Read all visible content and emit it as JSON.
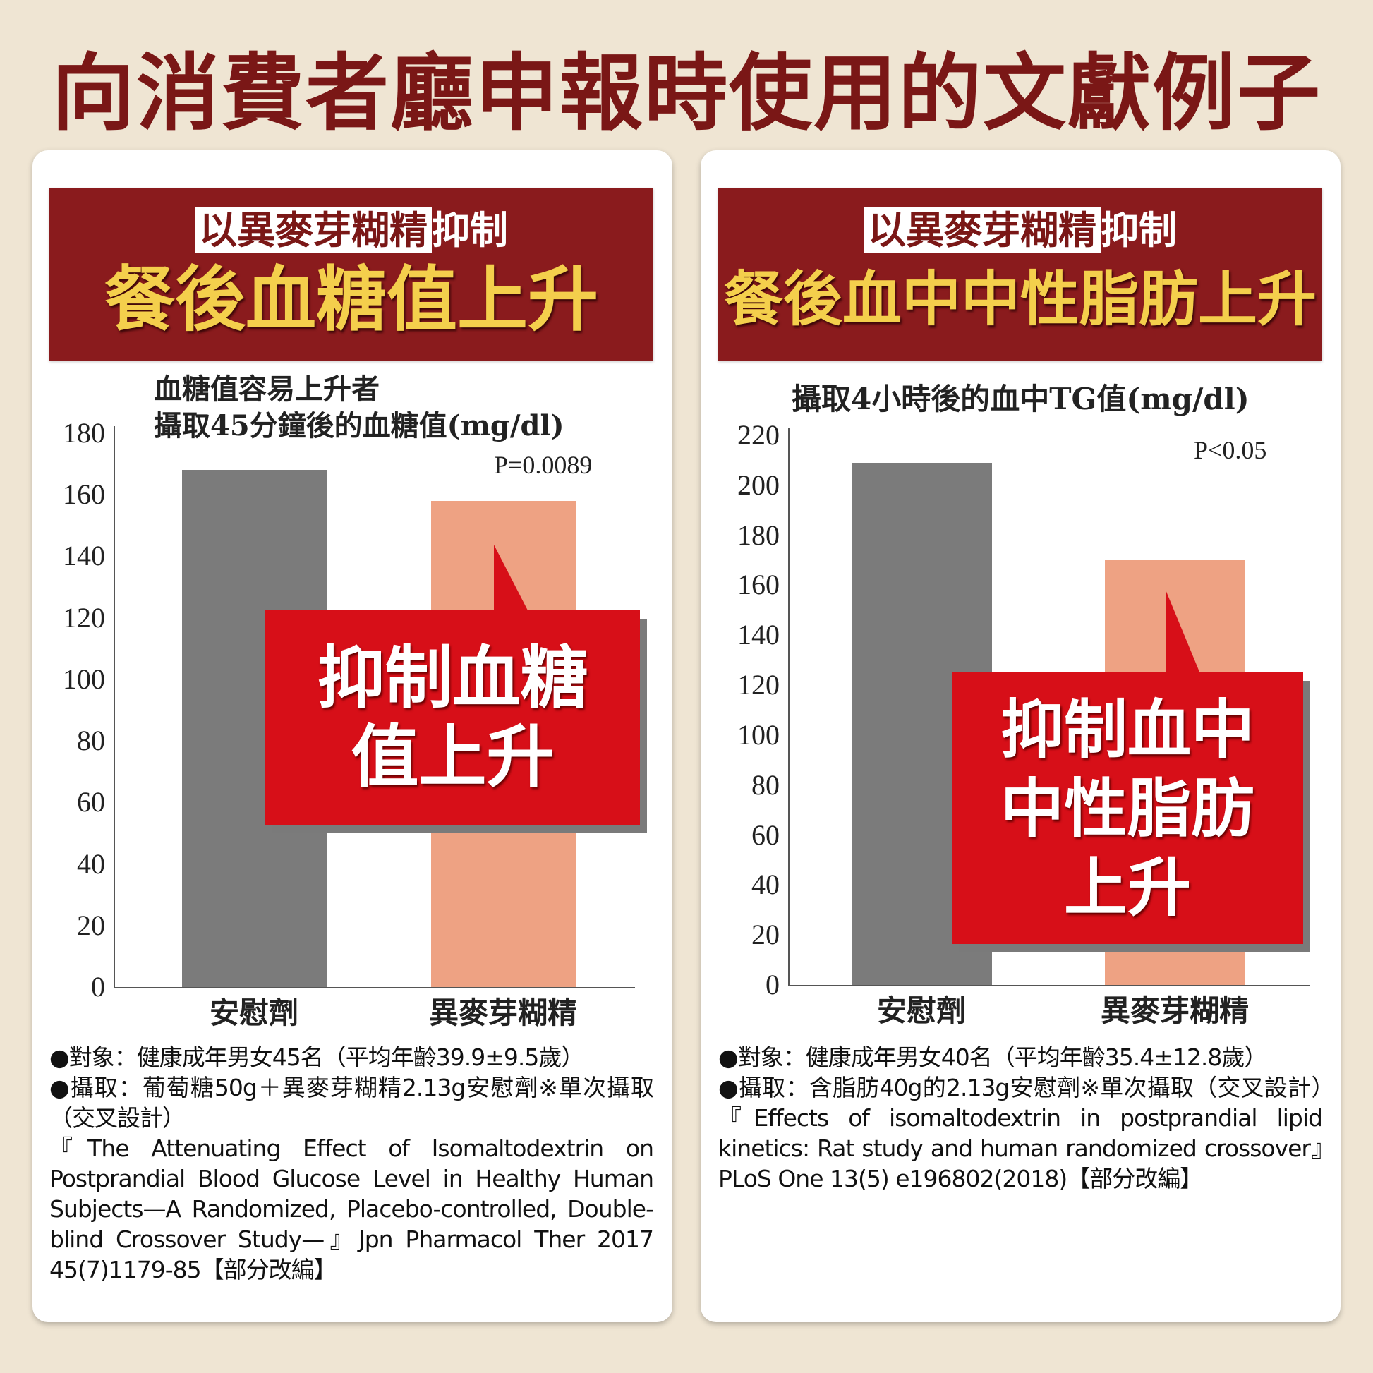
{
  "title": "向消費者廳申報時使用的文獻例子",
  "colors": {
    "placebo": "#7b7b7b",
    "isomaltodextrin": "#eea283",
    "header": "#8a1b1d",
    "callout": "#d70f18",
    "headline": "#f4cf4c"
  },
  "panels": [
    {
      "header_highlight": "以異麥芽糊精",
      "header_sub": "抑制",
      "header_main": "餐後血糖值上升",
      "chart_title_1": "血糖值容易上升者",
      "chart_title_2": "攝取45分鐘後的血糖值(mg/dl)",
      "p_value": "P=0.0089",
      "callout": "抑制血糖\n值上升",
      "notes": [
        "●對象：健康成年男女45名（平均年齡39.9±9.5歲）",
        "●攝取：葡萄糖50g＋異麥芽糊精2.13g安慰劑※單次攝取（交叉設計）",
        "『The Attenuating Effect of Isomaltodextrin on Postprandial Blood Glucose Level in Healthy Human Subjects—A Randomized, Placebo-controlled, Double-blind Crossover Study—』Jpn Pharmacol Ther 2017 45(7)1179-85【部分改編】"
      ]
    },
    {
      "header_highlight": "以異麥芽糊精",
      "header_sub": "抑制",
      "header_main": "餐後血中中性脂肪上升",
      "chart_title_1": "攝取4小時後的血中TG值(mg/dl)",
      "chart_title_2": "",
      "p_value": "P<0.05",
      "callout": "抑制血中\n中性脂肪\n上升",
      "notes": [
        "●對象：健康成年男女40名（平均年齡35.4±12.8歲）",
        "●攝取：含脂肪40g的2.13g安慰劑※單次攝取（交叉設計）　『Effects of isomaltodextrin in postprandial lipid kinetics: Rat study and human randomized crossover』PLoS One 13(5) e196802(2018)【部分改編】"
      ]
    }
  ],
  "chart_data": [
    {
      "type": "bar",
      "title": "血糖值容易上升者 攝取45分鐘後的血糖值(mg/dl)",
      "categories": [
        "安慰劑",
        "異麥芽糊精"
      ],
      "values": [
        168,
        158
      ],
      "ylim": [
        0,
        180
      ],
      "yticks": [
        "0",
        "20",
        "40",
        "60",
        "80",
        "100",
        "120",
        "140",
        "160",
        "180"
      ],
      "annotation": "P=0.0089",
      "grid": false
    },
    {
      "type": "bar",
      "title": "攝取4小時後的血中TG值(mg/dl)",
      "categories": [
        "安慰劑",
        "異麥芽糊精"
      ],
      "values": [
        209,
        170
      ],
      "ylim": [
        0,
        220
      ],
      "yticks": [
        "0",
        "20",
        "40",
        "60",
        "80",
        "100",
        "120",
        "140",
        "160",
        "180",
        "200",
        "220"
      ],
      "annotation": "P<0.05",
      "grid": false
    }
  ]
}
